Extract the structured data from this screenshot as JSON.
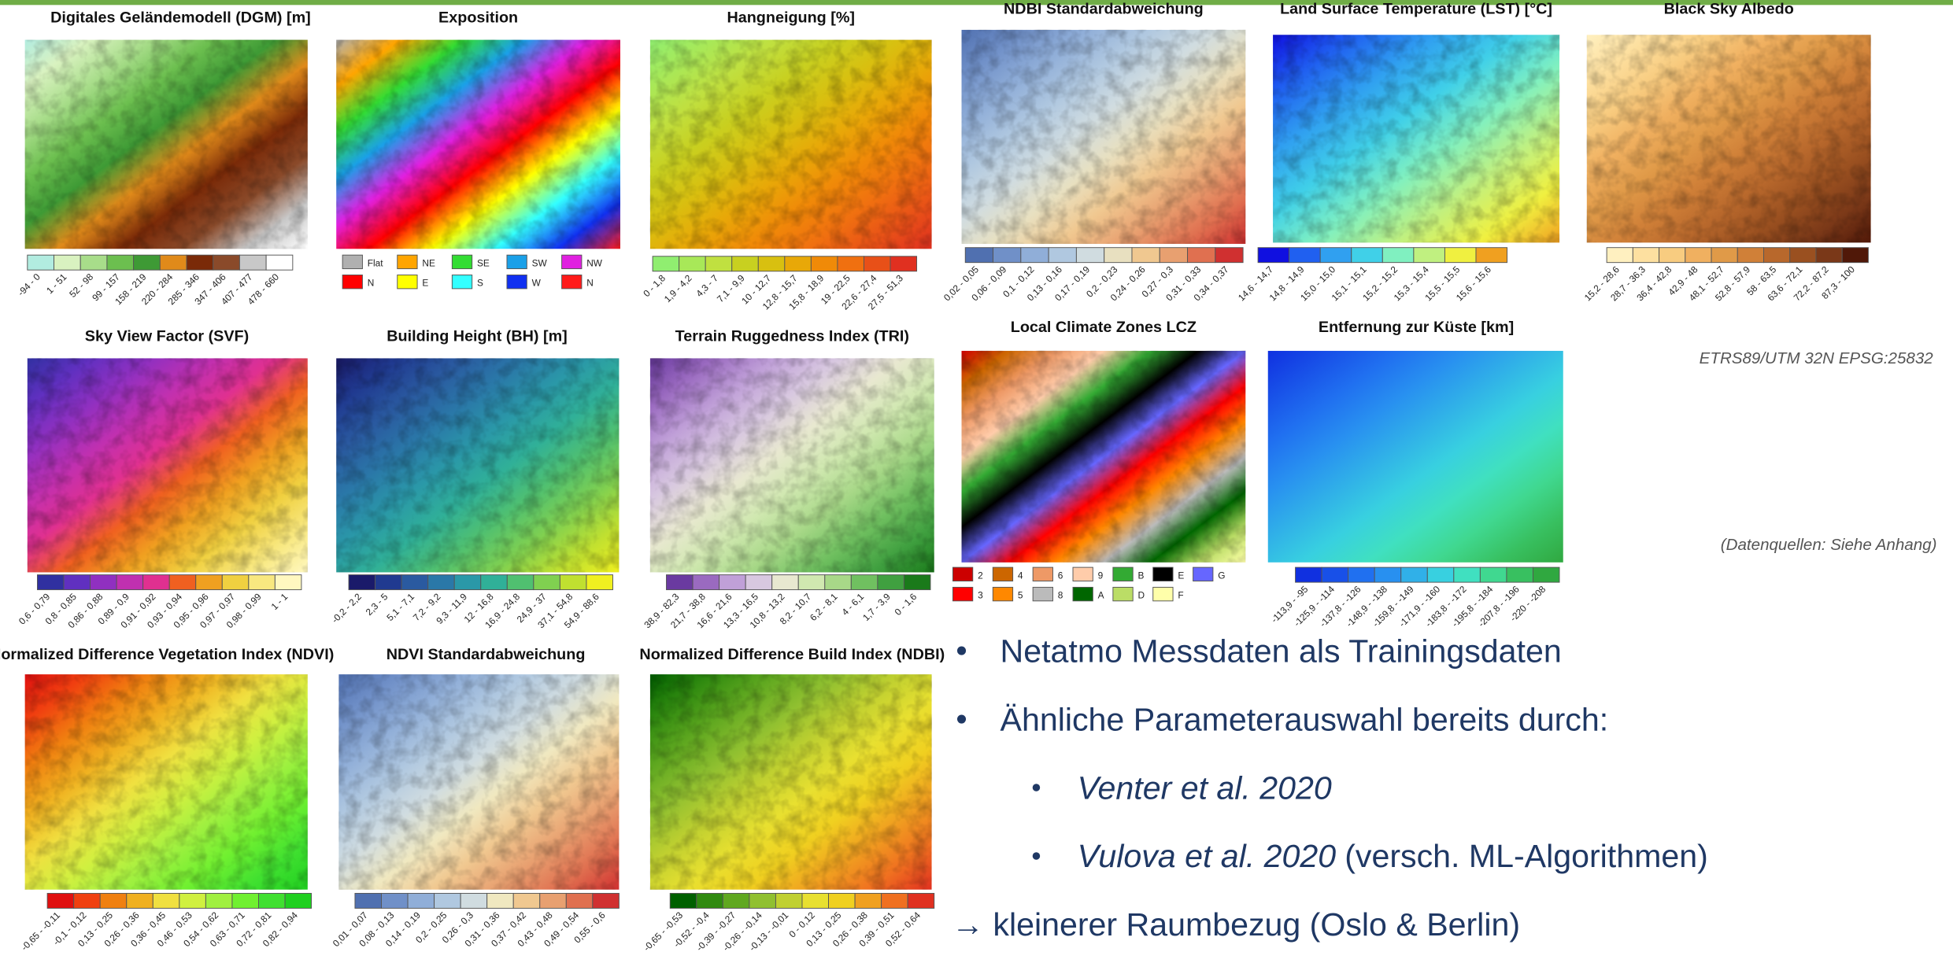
{
  "panels": [
    {
      "title": "Digitales  Geländemodell (DGM) [m]",
      "legend": [
        "-94 - 0",
        "1 - 51",
        "52 - 98",
        "99 - 157",
        "158 - 219",
        "220 - 284",
        "285 - 346",
        "347 - 406",
        "407 - 477",
        "478 - 660"
      ],
      "colors": [
        "#b2ece0",
        "#d9f2c0",
        "#a8dd8a",
        "#6cbf4f",
        "#3e9a35",
        "#e08a1a",
        "#7a2a08",
        "#8a4a2a",
        "#c8c8c8",
        "#ffffff"
      ]
    },
    {
      "title": "Exposition",
      "legend": [
        "Flat",
        "NE",
        "SE",
        "SW",
        "NW",
        "N",
        "E",
        "S",
        "W",
        "N"
      ],
      "colors": [
        "#b0b0b0",
        "#ffa500",
        "#33dd33",
        "#1aa0e8",
        "#e020e0",
        "#ff0000",
        "#ffff00",
        "#33ffff",
        "#1030f0",
        "#ff1a1a"
      ]
    },
    {
      "title": "Hangneigung [%]",
      "legend": [
        "0 - 1,8",
        "1,9 - 4,2",
        "4,3 - 7",
        "7,1 - 9,9",
        "10 - 12,7",
        "12,8 - 15,7",
        "15,8 - 18,9",
        "19 - 22,5",
        "22,6 - 27,4",
        "27,5 - 51,3"
      ],
      "colors": [
        "#90ee70",
        "#a8e858",
        "#c0e040",
        "#c8d020",
        "#d8c010",
        "#e8a808",
        "#f08a08",
        "#f07010",
        "#e85018",
        "#e03020"
      ]
    },
    {
      "title": "NDBI Standardabweichung",
      "legend": [
        "0,02 - 0,05",
        "0,06 - 0,09",
        "0,1 - 0,12",
        "0,13 - 0,16",
        "0,17 - 0,19",
        "0,2 - 0,23",
        "0,24 - 0,26",
        "0,27 - 0,3",
        "0,31 - 0,33",
        "0,34 - 0,37"
      ],
      "colors": [
        "#5070b0",
        "#7090c8",
        "#90aed8",
        "#b0c8e0",
        "#d0dce0",
        "#e8e0c0",
        "#f0c890",
        "#e8a070",
        "#e07050",
        "#d03030"
      ]
    },
    {
      "title": "Land Surface Temperature (LST) [°C]",
      "legend": [
        "14,6 - 14,7",
        "14,8 - 14,9",
        "15,0 - 15,0",
        "15,1 - 15,1",
        "15,2 - 15,2",
        "15,3 - 15,4",
        "15,5 - 15,5",
        "15,6 - 15,6"
      ],
      "colors": [
        "#1010e0",
        "#2060f0",
        "#30a0f0",
        "#40d0e8",
        "#80f0c0",
        "#c0f080",
        "#f0f040",
        "#f0a020"
      ]
    },
    {
      "title": "Black Sky Albedo",
      "legend": [
        "15,2 - 28,6",
        "28,7 - 36,3",
        "36,4 - 42,8",
        "42,9 - 48",
        "48,1 - 52,7",
        "52,8 - 57,9",
        "58 - 63,5",
        "63,6 - 72,1",
        "72,2 - 87,2",
        "87,3 - 100"
      ],
      "colors": [
        "#fff0c0",
        "#fde0a0",
        "#f8cc80",
        "#f0b060",
        "#e09a48",
        "#d08038",
        "#b8682c",
        "#9a5020",
        "#7a3818",
        "#501808"
      ]
    },
    {
      "title": "Sky View Factor (SVF)",
      "legend": [
        "0,6 - 0,79",
        "0,8 - 0,85",
        "0,86 - 0,88",
        "0,89 - 0,9",
        "0,91 - 0,92",
        "0,93 - 0,94",
        "0,95 - 0,96",
        "0,97 - 0,97",
        "0,98 - 0,99",
        "1 - 1"
      ],
      "colors": [
        "#3030a0",
        "#6030c0",
        "#9030c0",
        "#c030b0",
        "#e03090",
        "#f06020",
        "#f0a020",
        "#f0d040",
        "#f8e880",
        "#fff8c0"
      ]
    },
    {
      "title": "Building Height (BH) [m]",
      "legend": [
        "-0,2 - 2,2",
        "2,3 - 5",
        "5,1 - 7,1",
        "7,2 - 9,2",
        "9,3 - 11,9",
        "12 - 16,8",
        "16,9 - 24,8",
        "24,9 - 37",
        "37,1 - 54,8",
        "54,9 - 88,6"
      ],
      "colors": [
        "#1a1a6a",
        "#203a90",
        "#2a5aa0",
        "#2a78a8",
        "#2a98a8",
        "#30b098",
        "#50c070",
        "#80d050",
        "#c0e030",
        "#f0f020"
      ]
    },
    {
      "title": "Terrain Ruggedness Index (TRI)",
      "legend": [
        "38,9 - 82,3",
        "21,7 - 38,8",
        "16,6 - 21,6",
        "13,3 - 16,5",
        "10,8 - 13,2",
        "8,2 - 10,7",
        "6,2 - 8,1",
        "4 - 6,1",
        "1,7 - 3,9",
        "0 - 1,6"
      ],
      "colors": [
        "#6a3aa0",
        "#9a6ac0",
        "#c0a0d8",
        "#d8c8e0",
        "#e8e8d0",
        "#d0e8b0",
        "#a8d888",
        "#70c060",
        "#40a040",
        "#1a7a1a"
      ]
    },
    {
      "title": "Local Climate Zones LCZ",
      "legend": [
        "2",
        "4",
        "6",
        "9",
        "B",
        "E",
        "G",
        "3",
        "5",
        "8",
        "A",
        "D",
        "F"
      ],
      "colors": [
        "#cc0000",
        "#cc6600",
        "#ee9966",
        "#ffccaa",
        "#33aa33",
        "#000000",
        "#6666ff",
        "#ff0000",
        "#ff8800",
        "#bbbbbb",
        "#006600",
        "#bbdd66",
        "#ffffaa"
      ]
    },
    {
      "title": "Entfernung zur Küste [km]",
      "legend": [
        "-113,9 - -95",
        "-125,9 - -114",
        "-137,8 - -126",
        "-148,9 - -138",
        "-159,8 - -149",
        "-171,9 - -160",
        "-183,8 - -172",
        "-195,8 - -184",
        "-207,8 - -196",
        "-220 - -208"
      ],
      "colors": [
        "#1030e0",
        "#1850e8",
        "#2070f0",
        "#2890f0",
        "#30b0e8",
        "#38d0e0",
        "#40e0c0",
        "#40d890",
        "#38c060",
        "#30a840"
      ]
    },
    {
      "title": "Normalized Difference Vegetation Index (NDVI)",
      "legend": [
        "-0,65 - -0,11",
        "-0,1 - 0,12",
        "0,13 - 0,25",
        "0,26 - 0,36",
        "0,36 - 0,45",
        "0,46 - 0,53",
        "0,54 - 0,62",
        "0,63 - 0,71",
        "0,72 - 0,81",
        "0,82 - 0,94"
      ],
      "colors": [
        "#e01010",
        "#f04010",
        "#f08010",
        "#f0b020",
        "#f0e040",
        "#d0f040",
        "#a0f040",
        "#70f030",
        "#40e030",
        "#20d020"
      ]
    },
    {
      "title": "NDVI Standardabweichung",
      "legend": [
        "0,01 - 0,07",
        "0,08 - 0,13",
        "0,14 - 0,19",
        "0,2 - 0,25",
        "0,26 - 0,3",
        "0,31 - 0,36",
        "0,37 - 0,42",
        "0,43 - 0,48",
        "0,49 - 0,54",
        "0,55 - 0,6"
      ],
      "colors": [
        "#5070b0",
        "#7090c8",
        "#90aed8",
        "#b0c8e0",
        "#d0dce0",
        "#f0e8c0",
        "#f0c890",
        "#e8a070",
        "#e07050",
        "#d03030"
      ]
    },
    {
      "title": "Normalized Difference Build Index (NDBI)",
      "legend": [
        "-0,65 - -0,53",
        "-0,52 - -0,4",
        "-0,39 - -0,27",
        "-0,26 - -0,14",
        "-0,13 - -0,01",
        "0 - 0,12",
        "0,13 - 0,25",
        "0,26 - 0,38",
        "0,39 - 0,51",
        "0,52 - 0,64"
      ],
      "colors": [
        "#006000",
        "#308a10",
        "#60a820",
        "#90c030",
        "#c0d030",
        "#e8e030",
        "#f0d020",
        "#f0a020",
        "#f07020",
        "#e03020"
      ]
    }
  ],
  "notes": {
    "crs": "ETRS89/UTM 32N EPSG:25832",
    "sources": "(Datenquellen: Siehe Anhang)"
  },
  "bullets": {
    "items": [
      "Netatmo Messdaten als Trainingsdaten",
      "Ähnliche Parameterauswahl bereits durch:"
    ],
    "sub": [
      {
        "italic": "Venter et al. 2020"
      },
      {
        "italic": "Vulova et al. 2020",
        "text": "(versch. ML-Algorithmen)"
      }
    ],
    "conclusion": "→ kleinerer Raumbezug (Oslo & Berlin)"
  }
}
